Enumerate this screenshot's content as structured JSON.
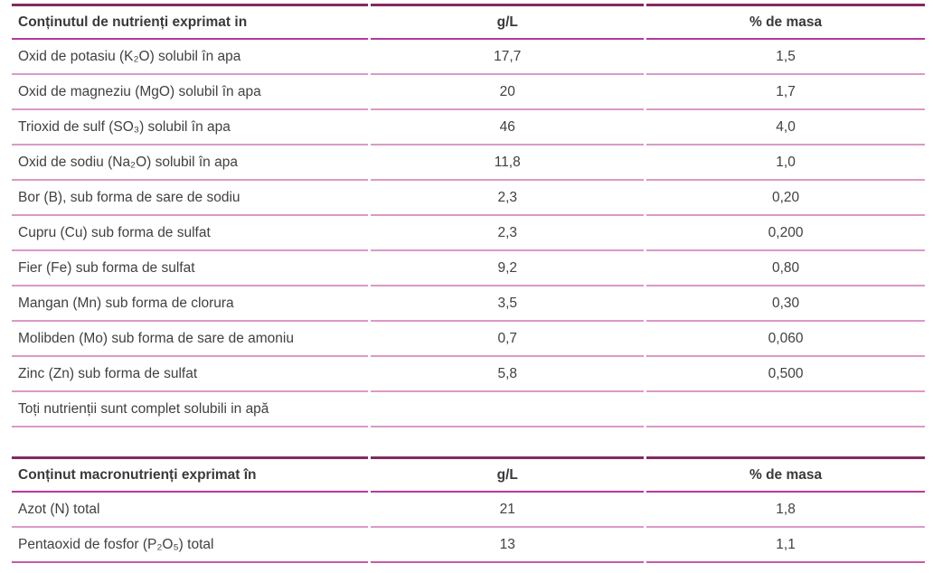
{
  "colors": {
    "table_top_border": "#832a60",
    "header_rule": "#b8399b",
    "row_rule": "#db99c8",
    "table2_bottom_rule": "#c45ca7",
    "text": "#414042",
    "background": "#ffffff"
  },
  "tables": [
    {
      "name": "micronutrients",
      "header": {
        "label": "Conținutul de nutrienți exprimat in",
        "gl": "g/L",
        "pct": "% de masa"
      },
      "rows": [
        {
          "label": "Oxid de potasiu (K₂O) solubil în apa",
          "gl": "17,7",
          "pct": "1,5"
        },
        {
          "label": "Oxid de magneziu (MgO) solubil în apa",
          "gl": "20",
          "pct": "1,7"
        },
        {
          "label": "Trioxid de sulf (SO₃) solubil în apa",
          "gl": "46",
          "pct": "4,0"
        },
        {
          "label": "Oxid de sodiu (Na₂O) solubil în apa",
          "gl": "11,8",
          "pct": "1,0"
        },
        {
          "label": "Bor (B), sub forma de sare de sodiu",
          "gl": "2,3",
          "pct": "0,20"
        },
        {
          "label": "Cupru (Cu) sub forma de sulfat",
          "gl": "2,3",
          "pct": "0,200"
        },
        {
          "label": "Fier (Fe) sub forma de sulfat",
          "gl": "9,2",
          "pct": "0,80"
        },
        {
          "label": "Mangan (Mn) sub forma de clorura",
          "gl": "3,5",
          "pct": "0,30"
        },
        {
          "label": "Molibden (Mo) sub forma de sare de amoniu",
          "gl": "0,7",
          "pct": "0,060"
        },
        {
          "label": "Zinc (Zn) sub forma de sulfat",
          "gl": "5,8",
          "pct": "0,500"
        },
        {
          "label": "Toți nutrienții sunt complet solubili in apă",
          "gl": "",
          "pct": ""
        }
      ]
    },
    {
      "name": "macronutrients",
      "header": {
        "label": "Conținut macronutrienți exprimat în",
        "gl": "g/L",
        "pct": "% de masa"
      },
      "rows": [
        {
          "label": "Azot (N) total",
          "gl": "21",
          "pct": "1,8"
        },
        {
          "label": "Pentaoxid de fosfor (P₂O₅) total",
          "gl": "13",
          "pct": "1,1"
        }
      ]
    }
  ]
}
